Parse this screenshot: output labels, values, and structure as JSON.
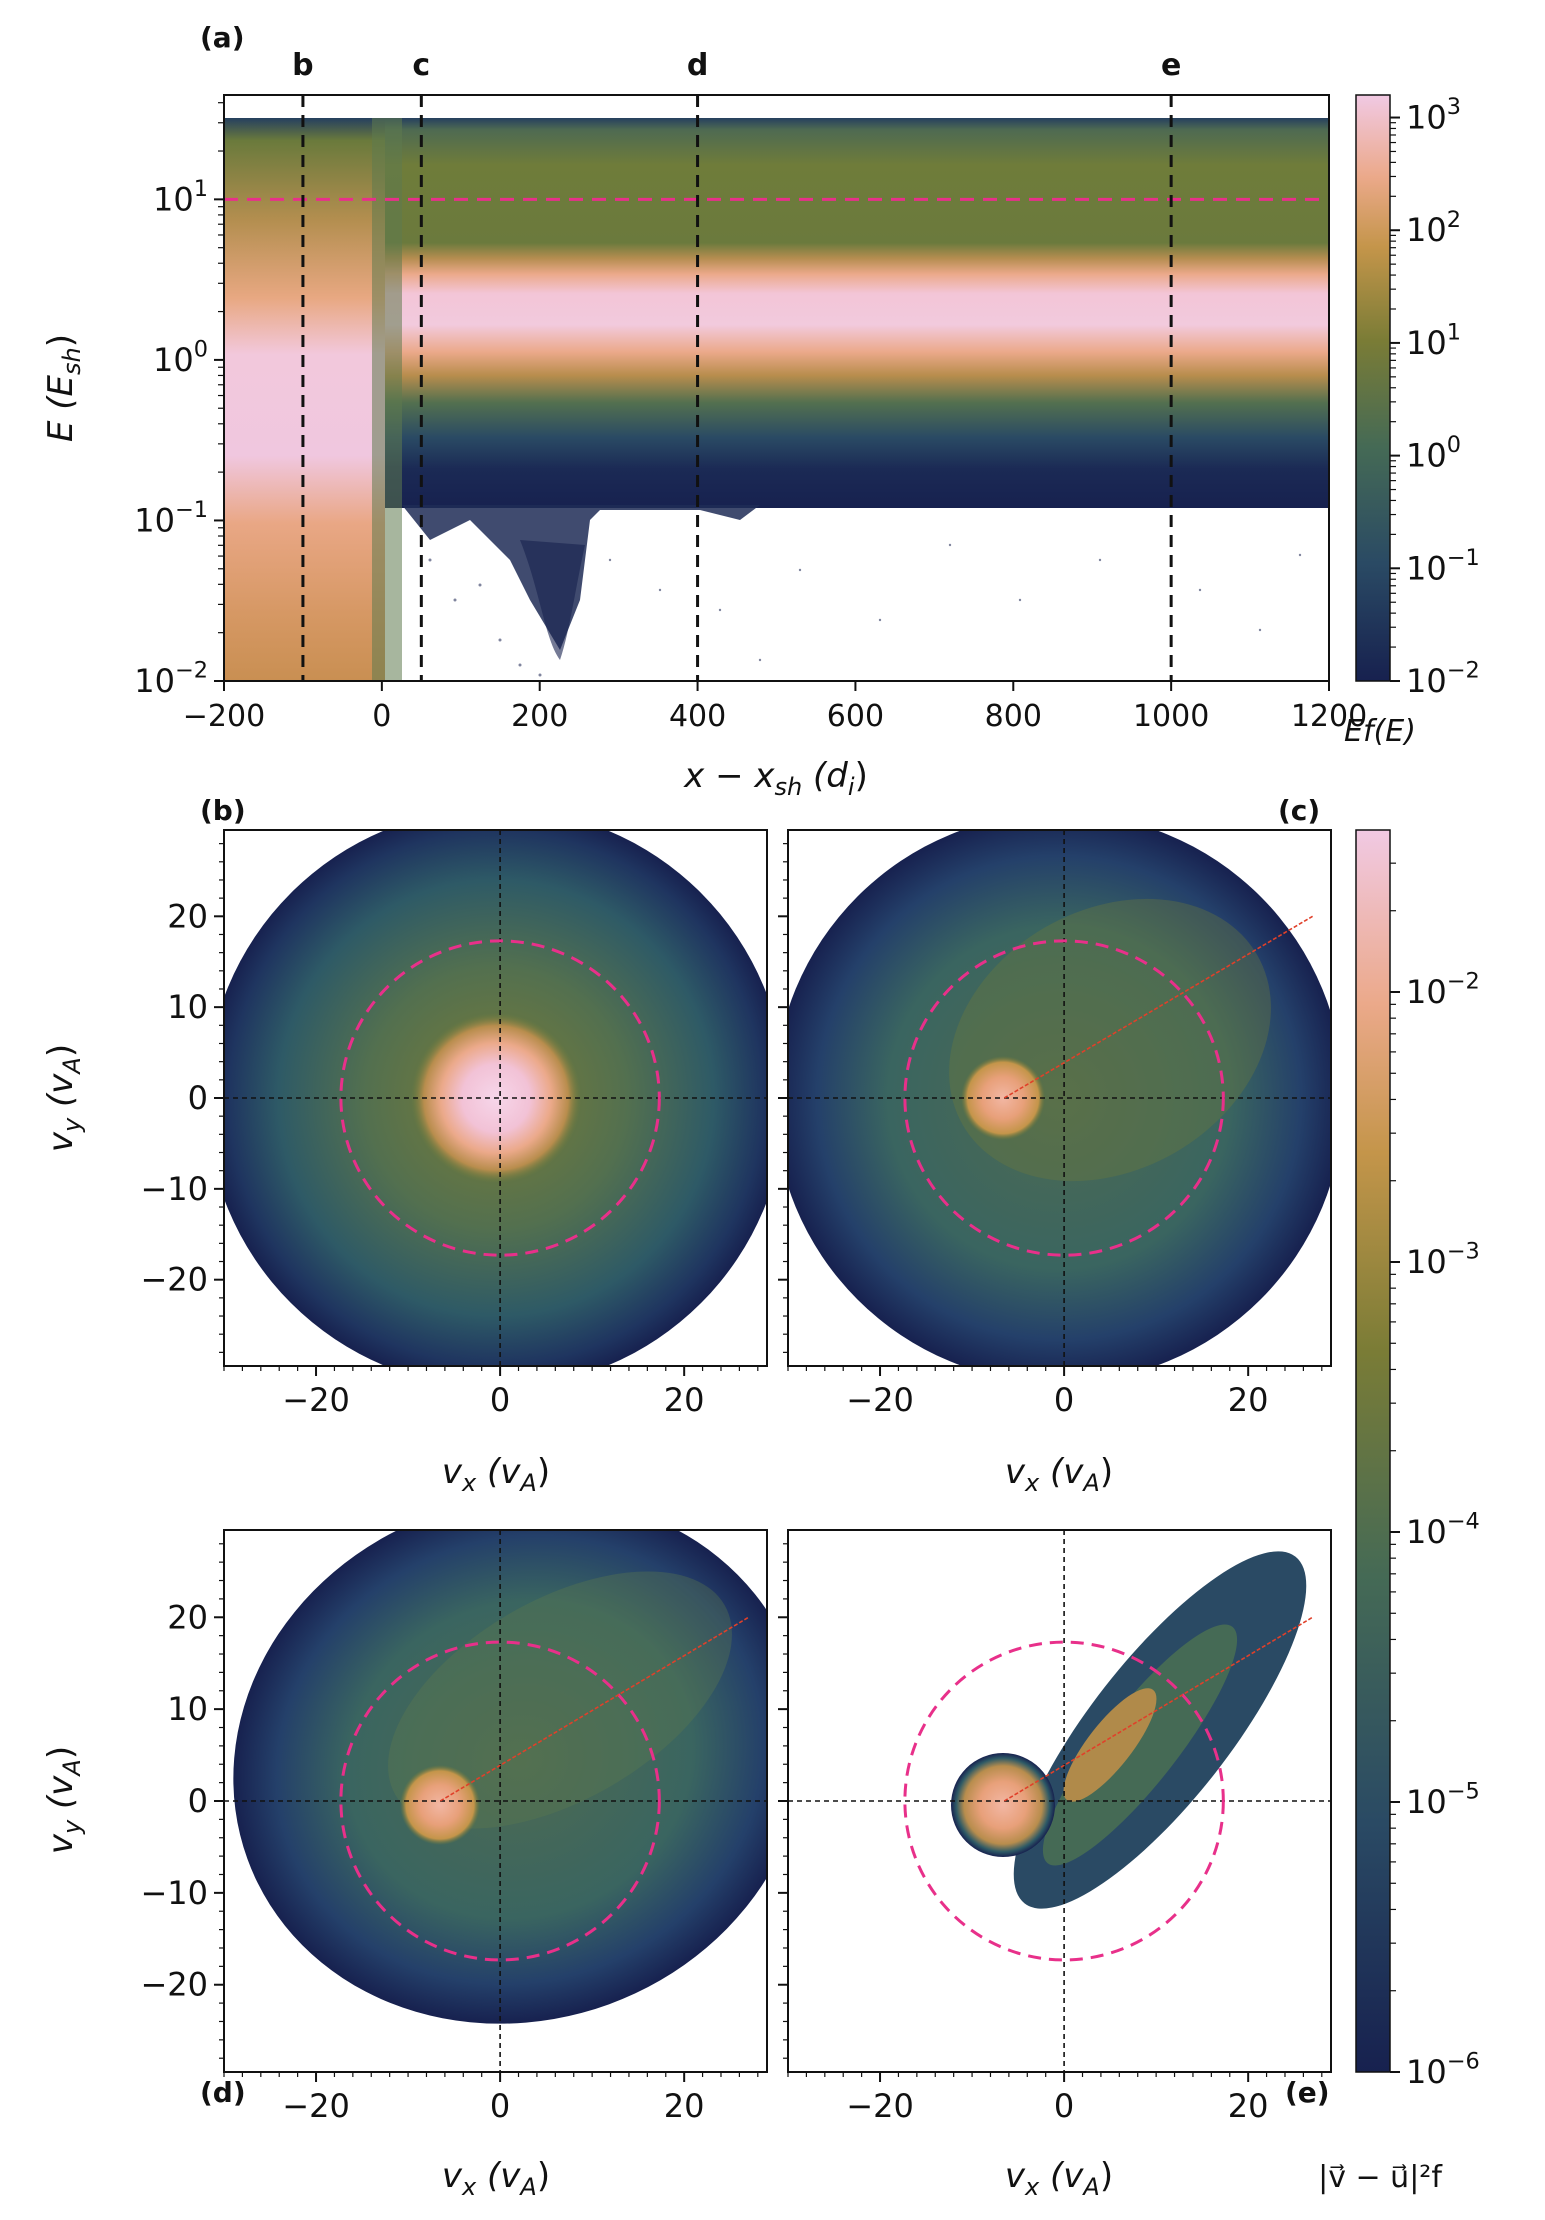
{
  "chart_data": [
    {
      "type": "heatmap",
      "panel_label": "(a)",
      "xlabel": "x − x",
      "xlabel_sub": "sh",
      "xlabel_unit": "(d",
      "xlabel_unit_sub": "i",
      "ylabel": "E (E",
      "ylabel_sub": "sh",
      "xlim": [
        -200,
        1200
      ],
      "ylim_log10": [
        -2,
        1.65
      ],
      "x_ticks": [
        -200,
        0,
        200,
        400,
        600,
        800,
        1000,
        1200
      ],
      "x_tick_labels": [
        "−200",
        "0",
        "200",
        "400",
        "600",
        "800",
        "1000",
        "1200"
      ],
      "y_ticks_log10": [
        -2,
        -1,
        0,
        1
      ],
      "y_tick_labels": [
        {
          "base": "10",
          "exp": "−2"
        },
        {
          "base": "10",
          "exp": "−1"
        },
        {
          "base": "10",
          "exp": "0"
        },
        {
          "base": "10",
          "exp": "1"
        }
      ],
      "markers": [
        {
          "label": "b",
          "x": -100
        },
        {
          "label": "c",
          "x": 50
        },
        {
          "label": "d",
          "x": 400
        },
        {
          "label": "e",
          "x": 1000
        }
      ],
      "reference_line": {
        "y": 10,
        "style": "dashed",
        "color": "#e8308a"
      },
      "colorbar": {
        "label": "Ef(E)",
        "range_log10": [
          -2,
          3.2
        ],
        "ticks_log10": [
          -2,
          -1,
          0,
          1,
          2,
          3
        ],
        "tick_labels": [
          {
            "base": "10",
            "exp": "−2"
          },
          {
            "base": "10",
            "exp": "−1"
          },
          {
            "base": "10",
            "exp": "0"
          },
          {
            "base": "10",
            "exp": "1"
          },
          {
            "base": "10",
            "exp": "2"
          },
          {
            "base": "10",
            "exp": "3"
          }
        ]
      }
    },
    {
      "type": "heatmap",
      "panels": [
        {
          "label": "(b)",
          "core_center": [
            0,
            0
          ],
          "core_radius": 5,
          "beam": false,
          "xtick_labels_shown": true
        },
        {
          "label": "(c)",
          "core_center": [
            -6.5,
            0
          ],
          "core_radius": 3,
          "beam": true,
          "xtick_labels_shown": true
        },
        {
          "label": "(d)",
          "core_center": [
            -6.5,
            0
          ],
          "core_radius": 3,
          "beam": true,
          "xtick_labels_shown": true
        },
        {
          "label": "(e)",
          "core_center": [
            -6.5,
            0
          ],
          "core_radius": 4.5,
          "beam": true,
          "xtick_labels_shown": true
        }
      ],
      "xlabel": "v",
      "xlabel_sub": "x",
      "ylabel": "v",
      "ylabel_sub": "y",
      "unit": "(v",
      "unit_sub": "A",
      "xlim": [
        -30,
        29
      ],
      "ylim": [
        -29.5,
        29.5
      ],
      "x_ticks": [
        -20,
        0,
        20
      ],
      "x_tick_labels": [
        "−20",
        "0",
        "20"
      ],
      "y_ticks": [
        20,
        10,
        0,
        -10,
        -20
      ],
      "y_tick_labels": [
        "20",
        "10",
        "0",
        "−10",
        "−20"
      ],
      "reference_circle_radius": 17.3,
      "beam_line": {
        "from": [
          -6.5,
          0
        ],
        "to": [
          27,
          20
        ]
      },
      "colorbar": {
        "label": "|v⃗ − u⃗|²f",
        "range_log10": [
          -6,
          -1.4
        ],
        "ticks_log10": [
          -6,
          -5,
          -4,
          -3,
          -2
        ],
        "tick_labels": [
          {
            "base": "10",
            "exp": "−6"
          },
          {
            "base": "10",
            "exp": "−5"
          },
          {
            "base": "10",
            "exp": "−4"
          },
          {
            "base": "10",
            "exp": "−3"
          },
          {
            "base": "10",
            "exp": "−2"
          }
        ]
      }
    }
  ],
  "colors": {
    "dark": "#17214f",
    "teal": "#2c5e67",
    "olive": "#707a37",
    "tan": "#c4954a",
    "salmon": "#eba98a",
    "pink": "#f1c9e3",
    "ref_magenta": "#e8308a",
    "beam_red": "#e0402a"
  }
}
